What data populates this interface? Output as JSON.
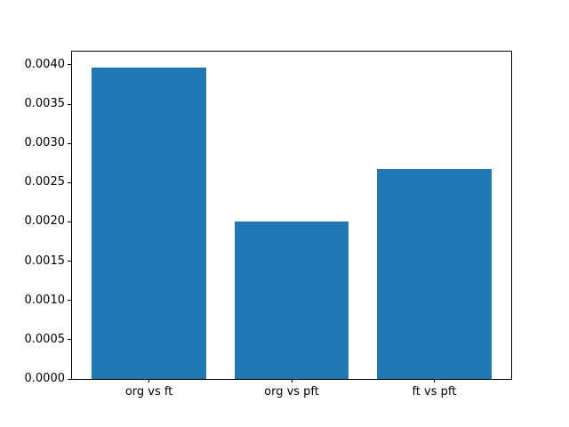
{
  "chart_data": {
    "type": "bar",
    "title": "",
    "xlabel": "",
    "ylabel": "",
    "categories": [
      "org vs ft",
      "org vs pft",
      "ft vs pft"
    ],
    "values": [
      0.00397,
      0.00201,
      0.00267
    ],
    "ylim": [
      0,
      0.0041685
    ],
    "yticks": [
      0.0,
      0.0005,
      0.001,
      0.0015,
      0.002,
      0.0025,
      0.003,
      0.0035,
      0.004
    ],
    "ytick_labels": [
      "0.0000",
      "0.0005",
      "0.0010",
      "0.0015",
      "0.0020",
      "0.0025",
      "0.0030",
      "0.0035",
      "0.0040"
    ],
    "legend": null,
    "grid": false,
    "bar_width_fraction": 0.2597,
    "bar_center_fractions": [
      0.1753,
      0.5,
      0.8247
    ],
    "bar_color": "#1f77b4"
  },
  "colors": {
    "background": "#ffffff",
    "axis": "#000000",
    "text": "#000000",
    "bar": "#1f77b4"
  }
}
